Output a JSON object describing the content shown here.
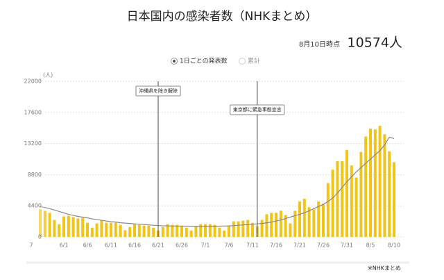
{
  "chart_data": {
    "type": "bar",
    "title": "日本国内の感染者数（NHKまとめ）",
    "as_of": "8月10日時点",
    "headline": "10574人",
    "options": [
      "1日ごとの発表数",
      "累計"
    ],
    "selected_option": 0,
    "y_label": "(人)",
    "source": "※NHKまとめ",
    "categories": [
      "7",
      null,
      null,
      null,
      null,
      "6/1",
      null,
      null,
      null,
      null,
      "6/6",
      null,
      null,
      null,
      null,
      "6/11",
      null,
      null,
      null,
      null,
      "6/16",
      null,
      null,
      null,
      null,
      "6/21",
      null,
      null,
      null,
      null,
      "6/26",
      null,
      null,
      null,
      null,
      "7/1",
      null,
      null,
      null,
      null,
      "7/6",
      null,
      null,
      null,
      null,
      "7/11",
      null,
      null,
      null,
      null,
      "7/16",
      null,
      null,
      null,
      null,
      "7/21",
      null,
      null,
      null,
      null,
      "7/26",
      null,
      null,
      null,
      null,
      "7/31",
      null,
      null,
      null,
      null,
      "8/5",
      null,
      null,
      null,
      null,
      "8/10"
    ],
    "series": [
      {
        "name": "1日ごとの発表数",
        "color": "#f0c419",
        "values": [
          3900,
          3700,
          3400,
          2400,
          1800,
          2900,
          3000,
          2800,
          2600,
          2700,
          2000,
          1300,
          1900,
          2300,
          2000,
          2000,
          2000,
          1700,
          940,
          1400,
          1800,
          1700,
          1600,
          1600,
          1300,
          900,
          1400,
          1800,
          1700,
          1700,
          1600,
          1300,
          900,
          1500,
          1800,
          1800,
          1800,
          1700,
          1300,
          900,
          1600,
          2200,
          2200,
          2300,
          2400,
          2000,
          1500,
          2400,
          3200,
          3400,
          3400,
          3700,
          3100,
          1900,
          3700,
          5000,
          5400,
          4200,
          3900,
          5000,
          4700,
          7600,
          9500,
          10700,
          10700,
          12300,
          10100,
          8400,
          12000,
          14200,
          15300,
          15200,
          15700,
          14500,
          12100,
          10574
        ]
      }
    ],
    "line": {
      "color": "#888888",
      "values": [
        4300,
        4150,
        4000,
        3800,
        3600,
        3400,
        3200,
        3050,
        2900,
        2800,
        2700,
        2550,
        2450,
        2350,
        2250,
        2150,
        2100,
        2000,
        1950,
        1900,
        1850,
        1800,
        1750,
        1700,
        1650,
        1600,
        1580,
        1560,
        1540,
        1530,
        1530,
        1520,
        1510,
        1500,
        1500,
        1500,
        1500,
        1510,
        1520,
        1540,
        1560,
        1600,
        1650,
        1700,
        1750,
        1800,
        1850,
        1900,
        2000,
        2100,
        2250,
        2400,
        2600,
        2800,
        3000,
        3200,
        3400,
        3700,
        4000,
        4300,
        4600,
        5000,
        5500,
        6200,
        7000,
        7800,
        8500,
        9200,
        9800,
        10400,
        11000,
        11600,
        12200,
        13000,
        14100,
        13900
      ]
    },
    "annotations": [
      {
        "text": "沖縄県を除き解除",
        "category_index": 25
      },
      {
        "text": "東京都に緊急事態宣言",
        "category_index": 46
      }
    ],
    "ylim": [
      0,
      22000
    ],
    "yticks": [
      0,
      4400,
      8800,
      13200,
      17600,
      22000
    ],
    "grid": true
  }
}
